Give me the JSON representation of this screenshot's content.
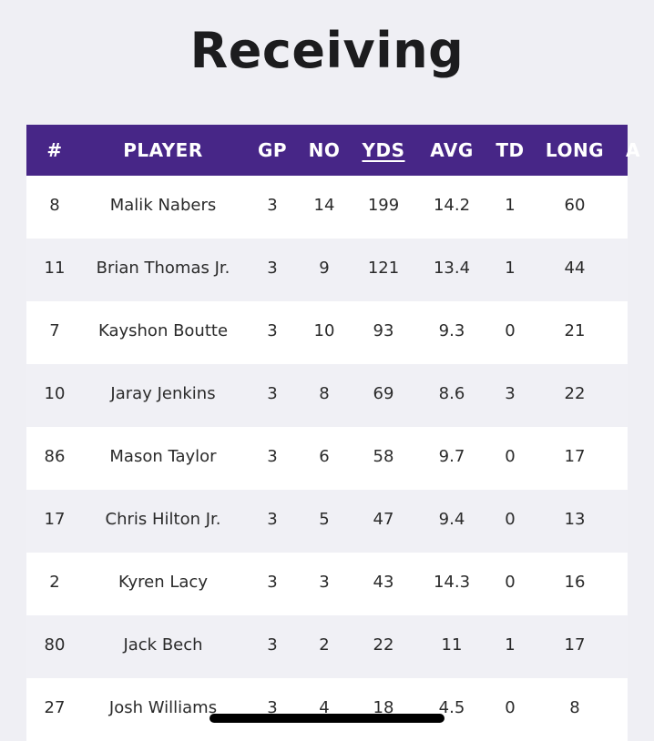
{
  "page": {
    "title": "Receiving"
  },
  "table": {
    "columns": [
      "#",
      "PLAYER",
      "GP",
      "NO",
      "YDS",
      "AVG",
      "TD",
      "LONG",
      "A"
    ],
    "sorted_column": "YDS",
    "rows": [
      {
        "num": "8",
        "player": "Malik Nabers",
        "gp": "3",
        "no": "14",
        "yds": "199",
        "avg": "14.2",
        "td": "1",
        "long": "60"
      },
      {
        "num": "11",
        "player": "Brian Thomas Jr.",
        "gp": "3",
        "no": "9",
        "yds": "121",
        "avg": "13.4",
        "td": "1",
        "long": "44"
      },
      {
        "num": "7",
        "player": "Kayshon Boutte",
        "gp": "3",
        "no": "10",
        "yds": "93",
        "avg": "9.3",
        "td": "0",
        "long": "21"
      },
      {
        "num": "10",
        "player": "Jaray Jenkins",
        "gp": "3",
        "no": "8",
        "yds": "69",
        "avg": "8.6",
        "td": "3",
        "long": "22"
      },
      {
        "num": "86",
        "player": "Mason Taylor",
        "gp": "3",
        "no": "6",
        "yds": "58",
        "avg": "9.7",
        "td": "0",
        "long": "17"
      },
      {
        "num": "17",
        "player": "Chris Hilton Jr.",
        "gp": "3",
        "no": "5",
        "yds": "47",
        "avg": "9.4",
        "td": "0",
        "long": "13"
      },
      {
        "num": "2",
        "player": "Kyren Lacy",
        "gp": "3",
        "no": "3",
        "yds": "43",
        "avg": "14.3",
        "td": "0",
        "long": "16"
      },
      {
        "num": "80",
        "player": "Jack Bech",
        "gp": "3",
        "no": "2",
        "yds": "22",
        "avg": "11",
        "td": "1",
        "long": "17"
      },
      {
        "num": "27",
        "player": "Josh Williams",
        "gp": "3",
        "no": "4",
        "yds": "18",
        "avg": "4.5",
        "td": "0",
        "long": "8"
      }
    ]
  },
  "colors": {
    "header_bg": "#472687",
    "header_text": "#ffffff",
    "page_bg": "#efeff4",
    "row_white": "#ffffff",
    "row_grey": "#f0f0f5"
  }
}
